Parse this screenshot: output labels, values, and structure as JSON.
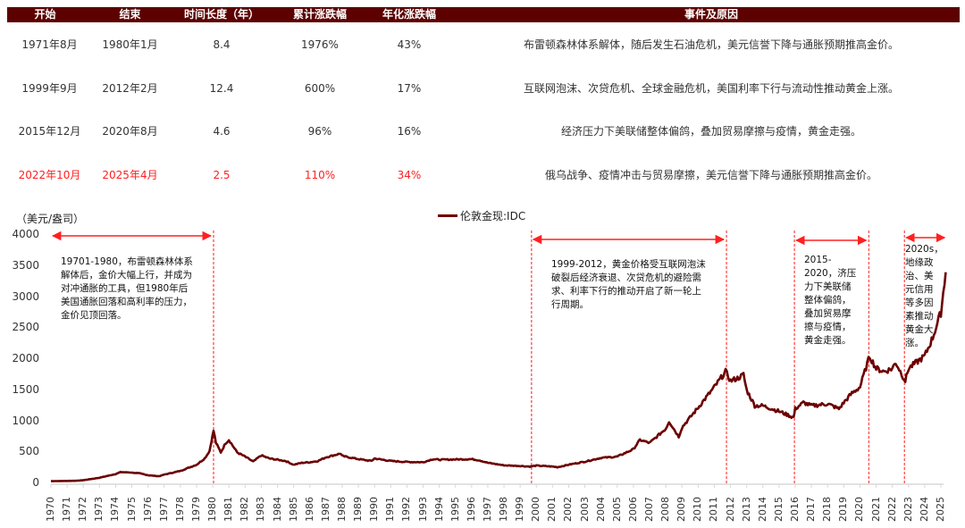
{
  "table": {
    "headers": [
      "开始",
      "结束",
      "时间长度（年）",
      "累计涨跌幅",
      "年化涨跌幅",
      "事件及原因"
    ],
    "header_bg": "#5c0000",
    "rows": [
      {
        "start": "1971年8月",
        "end": "1980年1月",
        "years": "8.4",
        "cumulative": "1976%",
        "annualized": "43%",
        "reason": "布雷顿森林体系解体，随后发生石油危机，美元信誉下降与通胀预期推高金价。",
        "highlight": false
      },
      {
        "start": "1999年9月",
        "end": "2012年2月",
        "years": "12.4",
        "cumulative": "600%",
        "annualized": "17%",
        "reason": "互联网泡沫、次贷危机、全球金融危机，美国利率下行与流动性推动黄金上涨。",
        "highlight": false
      },
      {
        "start": "2015年12月",
        "end": "2020年8月",
        "years": "4.6",
        "cumulative": "96%",
        "annualized": "16%",
        "reason": "经济压力下美联储整体偏鸽，叠加贸易摩擦与疫情，黄金走强。",
        "highlight": false
      },
      {
        "start": "2022年10月",
        "end": "2025年4月",
        "years": "2.5",
        "cumulative": "110%",
        "annualized": "34%",
        "reason": "俄乌战争、疫情冲击与贸易摩擦，美元信誉下降与通胀预期推高金价。",
        "highlight": true
      }
    ],
    "highlight_color": "#ff1f1f"
  },
  "chart_data": {
    "type": "line",
    "title": "",
    "ylabel": "（美元/盎司）",
    "xlabel": "",
    "ylim": [
      0,
      4000
    ],
    "yticks": [
      "4000",
      "3500",
      "3000",
      "2500",
      "2000",
      "1500",
      "1000",
      "500",
      "0"
    ],
    "xticks": [
      "1970",
      "1971",
      "1972",
      "1973",
      "1974",
      "1975",
      "1976",
      "1977",
      "1978",
      "1979",
      "1980",
      "1981",
      "1982",
      "1983",
      "1984",
      "1985",
      "1986",
      "1987",
      "1988",
      "1989",
      "1990",
      "1991",
      "1992",
      "1993",
      "1994",
      "1995",
      "1996",
      "1997",
      "1998",
      "1999",
      "2000",
      "2001",
      "2002",
      "2003",
      "2004",
      "2005",
      "2006",
      "2007",
      "2008",
      "2009",
      "2010",
      "2011",
      "2012",
      "2013",
      "2014",
      "2015",
      "2016",
      "2017",
      "2018",
      "2019",
      "2020",
      "2021",
      "2022",
      "2023",
      "2024",
      "2025"
    ],
    "grid": false,
    "legend_position": "top-center",
    "series": [
      {
        "name": "伦敦金现:IDC",
        "color": "#6b0000",
        "x": [
          1970,
          1971,
          1971.6,
          1972,
          1973,
          1973.5,
          1974,
          1974.3,
          1974.9,
          1975.5,
          1976,
          1976.7,
          1977,
          1978,
          1979,
          1979.5,
          1979.8,
          1980.05,
          1980.2,
          1980.5,
          1980.8,
          1981,
          1981.5,
          1982,
          1982.5,
          1983,
          1983.5,
          1984,
          1984.5,
          1985,
          1985.5,
          1986,
          1986.5,
          1987,
          1987.9,
          1988,
          1989,
          1989.8,
          1990,
          1990.5,
          1991,
          1992,
          1993,
          1993.6,
          1994,
          1995,
          1996,
          1996.5,
          1997,
          1998,
          1999,
          1999.6,
          2000,
          2001,
          2001.3,
          2002,
          2003,
          2004,
          2005,
          2006,
          2006.4,
          2007,
          2008,
          2008.2,
          2008.8,
          2009,
          2010,
          2011,
          2011.7,
          2012,
          2012.5,
          2012.8,
          2013,
          2013.5,
          2014,
          2015,
          2015.9,
          2016,
          2016.5,
          2017,
          2018,
          2018.7,
          2019,
          2019.5,
          2020,
          2020.6,
          2021,
          2021.5,
          2022,
          2022.2,
          2022.8,
          2023,
          2023.5,
          2024,
          2024.5,
          2025,
          2025.3
        ],
        "y": [
          35,
          39,
          42,
          50,
          90,
          120,
          150,
          180,
          175,
          160,
          130,
          115,
          140,
          200,
          300,
          400,
          520,
          850,
          650,
          500,
          650,
          700,
          500,
          430,
          350,
          450,
          400,
          380,
          360,
          300,
          330,
          340,
          360,
          420,
          480,
          440,
          390,
          360,
          400,
          380,
          360,
          345,
          340,
          390,
          380,
          385,
          390,
          370,
          330,
          290,
          280,
          270,
          285,
          270,
          260,
          300,
          350,
          410,
          430,
          550,
          700,
          650,
          880,
          1000,
          750,
          900,
          1220,
          1550,
          1800,
          1650,
          1700,
          1750,
          1500,
          1250,
          1250,
          1160,
          1060,
          1200,
          1300,
          1250,
          1280,
          1200,
          1300,
          1450,
          1550,
          2050,
          1850,
          1800,
          1850,
          1950,
          1650,
          1850,
          1950,
          2050,
          2350,
          2750,
          3400
        ]
      }
    ],
    "vlines": [
      1980.05,
      1999.7,
      2011.75,
      2015.95,
      2020.55,
      2022.75
    ],
    "vline_color": "#ff4d4d",
    "annotations": [
      {
        "text": "19701-1980，布雷顿森林体系解体后，金价大幅上行，并成为对冲通胀的工具，但1980年后美国通胀回落和高利率的压力，金价见顶回落。",
        "arrow_from": 1970,
        "arrow_to": 1980.05
      },
      {
        "text": "1999-2012，黄金价格受互联网泡沫破裂后经济衰退、次贷危机的避险需求、利率下行的推动开启了新一轮上行周期。",
        "arrow_from": 1999.7,
        "arrow_to": 2011.75
      },
      {
        "text": "2015-2020，济压力下美联储整体偏鸽，叠加贸易摩擦与疫情，黄金走强。",
        "arrow_from": 2015.95,
        "arrow_to": 2020.55
      },
      {
        "text": "2020s，地缘政治、美元信用等多因素推动黄金大涨。",
        "arrow_from": 2022.75,
        "arrow_to": 2025.4
      }
    ]
  }
}
